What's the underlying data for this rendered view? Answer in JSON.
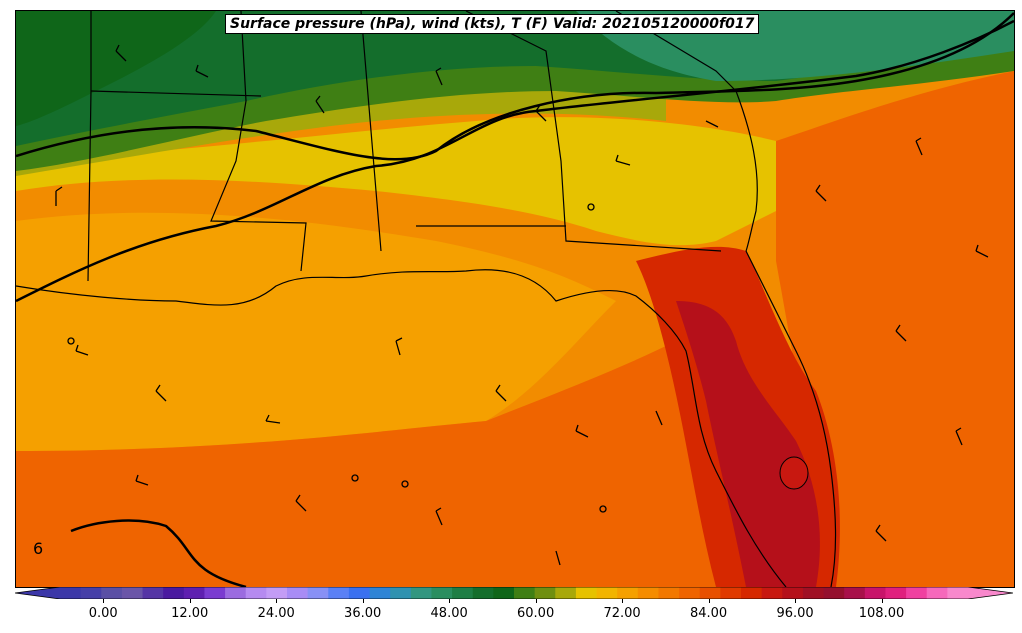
{
  "map": {
    "title": "Surface pressure (hPa), wind (kts), T (F) Valid: 202105120000f017",
    "edge_label": "6",
    "field": "temperature",
    "units": "F"
  },
  "colorbar": {
    "min": -6,
    "max": 120,
    "tick_values": [
      0,
      12,
      24,
      36,
      48,
      60,
      72,
      84,
      96,
      108
    ],
    "tick_labels": [
      "0.00",
      "12.00",
      "24.00",
      "36.00",
      "48.00",
      "60.00",
      "72.00",
      "84.00",
      "96.00",
      "108.00"
    ],
    "colors": [
      "#3b37a8",
      "#463fa8",
      "#5a4fa5",
      "#6a55a8",
      "#5535a5",
      "#4a1aa0",
      "#5e1fb0",
      "#7a3bd0",
      "#9b6be0",
      "#b58af0",
      "#c39cf5",
      "#a88cf5",
      "#8890f5",
      "#5a80f5",
      "#3a70f0",
      "#2e84d6",
      "#2f92b0",
      "#329680",
      "#2a8e60",
      "#1e7e45",
      "#146e2c",
      "#0f6619",
      "#3f7f14",
      "#6f8f10",
      "#a8a80a",
      "#e6c200",
      "#f2b400",
      "#f5a000",
      "#f58c00",
      "#f27800",
      "#ef6400",
      "#e85000",
      "#e03a00",
      "#d62800",
      "#c81810",
      "#b5101a",
      "#a01024",
      "#95102e",
      "#a8104a",
      "#c8146a",
      "#e0207e",
      "#f040a0",
      "#f668bb",
      "#f888cc"
    ]
  }
}
